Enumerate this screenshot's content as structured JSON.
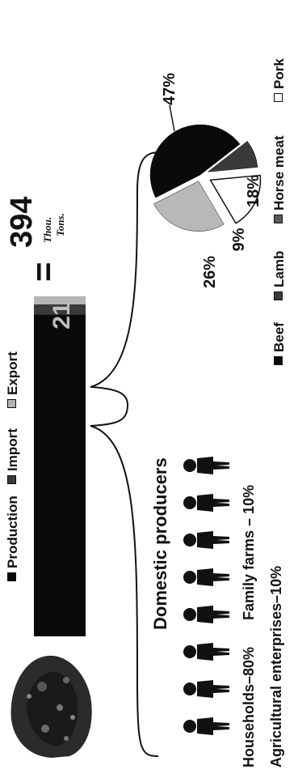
{
  "chart_data": [
    {
      "type": "bar",
      "orientation": "horizontal-stacked",
      "series": [
        {
          "name": "Production",
          "value": 373,
          "color": "#0a0a0a"
        },
        {
          "name": "Import",
          "value": 21,
          "color": "#3a3a3a"
        },
        {
          "name": "Export",
          "value": 0,
          "color": "#b5b5b5"
        }
      ],
      "segment_label": "21",
      "total": "394",
      "units": [
        "Thou.",
        "Tons."
      ]
    },
    {
      "type": "pie",
      "categories": [
        "Beef",
        "Lamb",
        "Horse meat",
        "Pork"
      ],
      "values": [
        47,
        9,
        18,
        26
      ],
      "labels": [
        "47%",
        "9%",
        "18%",
        "26%"
      ],
      "colors": [
        "#0a0a0a",
        "#3a3a3a",
        "#ffffff",
        "#b8b8b8"
      ]
    }
  ],
  "producers": {
    "title": "Domestic producers",
    "households": "Households–80%",
    "family_farms": "Family farms – 10%",
    "agricultural": "Agricultural enterprises–10%",
    "figure_count": 8
  },
  "equals_sign": "="
}
